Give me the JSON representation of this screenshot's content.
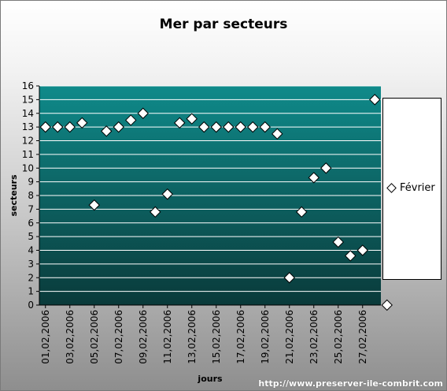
{
  "chart_data": {
    "type": "scatter",
    "title": "Mer par secteurs",
    "xlabel": "jours",
    "ylabel": "secteurs",
    "ylim": [
      0,
      16
    ],
    "yticks": [
      0,
      1,
      2,
      3,
      4,
      5,
      6,
      7,
      8,
      9,
      10,
      11,
      12,
      13,
      14,
      15,
      16
    ],
    "xtick_labels": [
      "01,02,2006",
      "03,02,2006",
      "05,02,2006",
      "07,02,2006",
      "09,02,2006",
      "11,02,2006",
      "13,02,2006",
      "15,02,2006",
      "17,02,2006",
      "19,02,2006",
      "21,02,2006",
      "23,02,2006",
      "25,02,2006",
      "27,02,2006"
    ],
    "xtick_positions": [
      1,
      3,
      5,
      7,
      9,
      11,
      13,
      15,
      17,
      19,
      21,
      23,
      25,
      27
    ],
    "xlim": [
      0.5,
      28.5
    ],
    "grid": true,
    "legend_position": "right",
    "series": [
      {
        "name": "Février",
        "marker": "diamond",
        "points": [
          [
            1,
            13
          ],
          [
            2,
            13
          ],
          [
            3,
            13
          ],
          [
            4,
            13.3
          ],
          [
            5,
            7.3
          ],
          [
            6,
            12.7
          ],
          [
            7,
            13
          ],
          [
            8,
            13.5
          ],
          [
            9,
            14
          ],
          [
            10,
            6.8
          ],
          [
            11,
            8.1
          ],
          [
            12,
            13.3
          ],
          [
            13,
            13.6
          ],
          [
            14,
            13
          ],
          [
            15,
            13
          ],
          [
            16,
            13
          ],
          [
            17,
            13
          ],
          [
            18,
            13
          ],
          [
            19,
            13
          ],
          [
            20,
            12.5
          ],
          [
            21,
            2
          ],
          [
            22,
            6.8
          ],
          [
            23,
            9.3
          ],
          [
            24,
            10
          ],
          [
            25,
            4.6
          ],
          [
            26,
            3.6
          ],
          [
            27,
            4
          ],
          [
            28,
            15
          ],
          [
            29,
            0
          ]
        ]
      }
    ]
  },
  "watermark": "http://www.preserver-ile-combrit.com",
  "colors": {
    "plot_top": "#0f8a8a",
    "plot_bottom": "#0b3b3b",
    "grid": "#ffffff",
    "marker_fill": "#ffffff"
  }
}
